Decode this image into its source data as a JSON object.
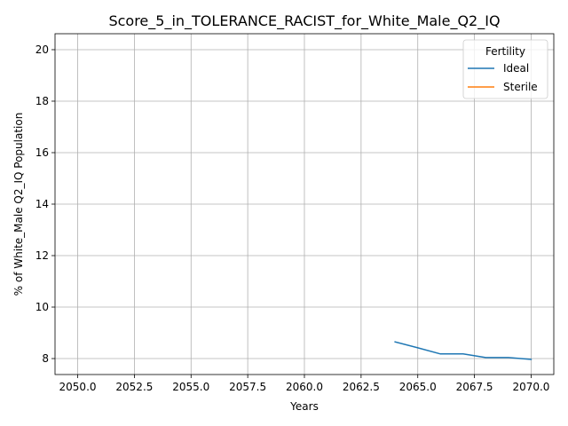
{
  "chart_data": {
    "type": "line",
    "title": "Score_5_in_TOLERANCE_RACIST_for_White_Male_Q2_IQ",
    "xlabel": "Years",
    "ylabel": "% of White_Male Q2_IQ Population",
    "xlim": [
      2049.0,
      2071.0
    ],
    "ylim": [
      7.38,
      20.62
    ],
    "xticks": [
      2050.0,
      2052.5,
      2055.0,
      2057.5,
      2060.0,
      2062.5,
      2065.0,
      2067.5,
      2070.0
    ],
    "xtick_labels": [
      "2050.0",
      "2052.5",
      "2055.0",
      "2057.5",
      "2060.0",
      "2062.5",
      "2065.0",
      "2067.5",
      "2070.0"
    ],
    "yticks": [
      8,
      10,
      12,
      14,
      16,
      18,
      20
    ],
    "ytick_labels": [
      "8",
      "10",
      "12",
      "14",
      "16",
      "18",
      "20"
    ],
    "grid": true,
    "legend": {
      "title": "Fertility",
      "placement": "top-right"
    },
    "series": [
      {
        "name": "Ideal",
        "color": "#1f77b4",
        "x": [
          2064,
          2065,
          2066,
          2067,
          2068,
          2069,
          2070
        ],
        "y": [
          8.65,
          8.42,
          8.18,
          8.18,
          8.04,
          8.04,
          7.97
        ]
      },
      {
        "name": "Sterile",
        "color": "#ff7f0e",
        "x": [],
        "y": []
      }
    ]
  }
}
